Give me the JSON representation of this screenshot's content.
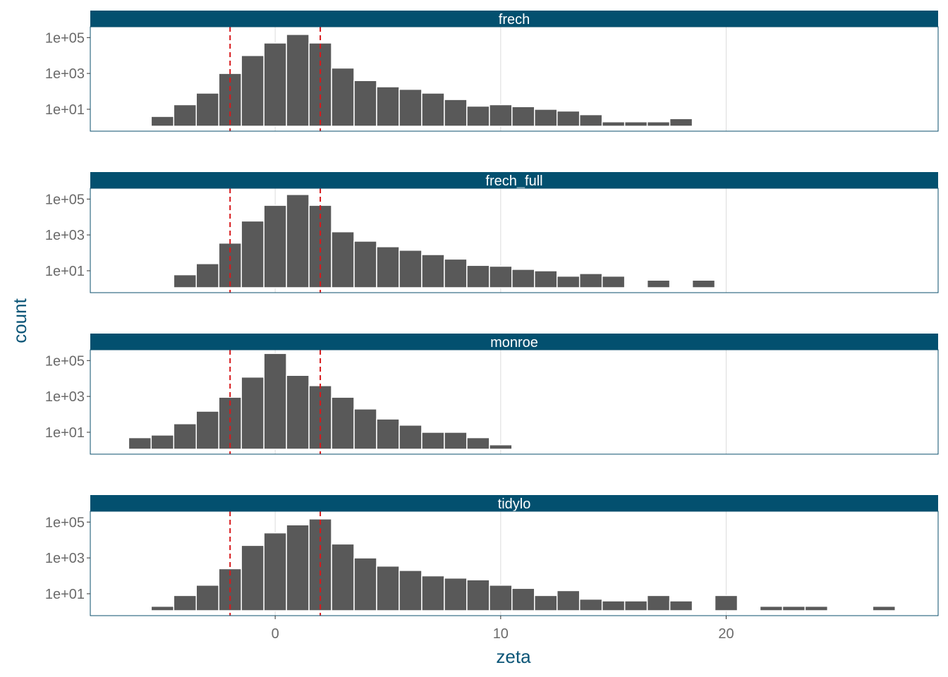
{
  "colors": {
    "strip": "#03506f",
    "panel_border": "#0b4f6c",
    "bar": "#595959",
    "bar_outline": "#ffffff",
    "vline": "#d7191c",
    "grid": "#dcdcdc",
    "tick_text": "#6b6b6b",
    "axis_title": "#0b5577"
  },
  "chart_data": {
    "type": "bar",
    "subtype": "faceted histogram",
    "xlabel": "zeta",
    "ylabel": "count",
    "y_scale": "log10",
    "y_ticks": [
      10,
      1000,
      100000
    ],
    "y_tick_labels": [
      "1e+01",
      "1e+03",
      "1e+05"
    ],
    "x_ticks": [
      0,
      10,
      20
    ],
    "x_tick_labels": [
      "0",
      "10",
      "20"
    ],
    "xlim": [
      -8.2,
      29.4
    ],
    "ylim": [
      0.6,
      400000
    ],
    "bin_width": 1,
    "x_gridlines": [
      0,
      10,
      20
    ],
    "reference_lines": [
      -2,
      2
    ],
    "reference_line_style": "dashed",
    "grid": "vertical major only",
    "legend": "none",
    "facets": [
      {
        "label": "frech",
        "bins": [
          {
            "x": -5,
            "count": 4
          },
          {
            "x": -4,
            "count": 18
          },
          {
            "x": -3,
            "count": 80
          },
          {
            "x": -2,
            "count": 1000
          },
          {
            "x": -1,
            "count": 10000
          },
          {
            "x": 0,
            "count": 50000
          },
          {
            "x": 1,
            "count": 150000
          },
          {
            "x": 2,
            "count": 50000
          },
          {
            "x": 3,
            "count": 2000
          },
          {
            "x": 4,
            "count": 400
          },
          {
            "x": 5,
            "count": 180
          },
          {
            "x": 6,
            "count": 130
          },
          {
            "x": 7,
            "count": 80
          },
          {
            "x": 8,
            "count": 35
          },
          {
            "x": 9,
            "count": 15
          },
          {
            "x": 10,
            "count": 18
          },
          {
            "x": 11,
            "count": 14
          },
          {
            "x": 12,
            "count": 10
          },
          {
            "x": 13,
            "count": 8
          },
          {
            "x": 14,
            "count": 5
          },
          {
            "x": 15,
            "count": 2
          },
          {
            "x": 16,
            "count": 2
          },
          {
            "x": 17,
            "count": 2
          },
          {
            "x": 18,
            "count": 3
          }
        ]
      },
      {
        "label": "frech_full",
        "bins": [
          {
            "x": -4,
            "count": 6
          },
          {
            "x": -3,
            "count": 25
          },
          {
            "x": -2,
            "count": 350
          },
          {
            "x": -1,
            "count": 6000
          },
          {
            "x": 0,
            "count": 45000
          },
          {
            "x": 1,
            "count": 180000
          },
          {
            "x": 2,
            "count": 45000
          },
          {
            "x": 3,
            "count": 1500
          },
          {
            "x": 4,
            "count": 450
          },
          {
            "x": 5,
            "count": 220
          },
          {
            "x": 6,
            "count": 140
          },
          {
            "x": 7,
            "count": 80
          },
          {
            "x": 8,
            "count": 45
          },
          {
            "x": 9,
            "count": 20
          },
          {
            "x": 10,
            "count": 18
          },
          {
            "x": 11,
            "count": 12
          },
          {
            "x": 12,
            "count": 10
          },
          {
            "x": 13,
            "count": 5
          },
          {
            "x": 14,
            "count": 7
          },
          {
            "x": 15,
            "count": 5
          },
          {
            "x": 17,
            "count": 3
          },
          {
            "x": 19,
            "count": 3
          }
        ]
      },
      {
        "label": "monroe",
        "bins": [
          {
            "x": -6,
            "count": 5
          },
          {
            "x": -5,
            "count": 7
          },
          {
            "x": -4,
            "count": 30
          },
          {
            "x": -3,
            "count": 150
          },
          {
            "x": -2,
            "count": 900
          },
          {
            "x": -1,
            "count": 12000
          },
          {
            "x": 0,
            "count": 250000
          },
          {
            "x": 1,
            "count": 15000
          },
          {
            "x": 2,
            "count": 4000
          },
          {
            "x": 3,
            "count": 900
          },
          {
            "x": 4,
            "count": 200
          },
          {
            "x": 5,
            "count": 55
          },
          {
            "x": 6,
            "count": 25
          },
          {
            "x": 7,
            "count": 10
          },
          {
            "x": 8,
            "count": 10
          },
          {
            "x": 9,
            "count": 5
          },
          {
            "x": 10,
            "count": 2
          }
        ]
      },
      {
        "label": "tidylo",
        "bins": [
          {
            "x": -5,
            "count": 2
          },
          {
            "x": -4,
            "count": 8
          },
          {
            "x": -3,
            "count": 30
          },
          {
            "x": -2,
            "count": 250
          },
          {
            "x": -1,
            "count": 5000
          },
          {
            "x": 0,
            "count": 25000
          },
          {
            "x": 1,
            "count": 70000
          },
          {
            "x": 2,
            "count": 150000
          },
          {
            "x": 3,
            "count": 6000
          },
          {
            "x": 4,
            "count": 1000
          },
          {
            "x": 5,
            "count": 350
          },
          {
            "x": 6,
            "count": 200
          },
          {
            "x": 7,
            "count": 100
          },
          {
            "x": 8,
            "count": 75
          },
          {
            "x": 9,
            "count": 60
          },
          {
            "x": 10,
            "count": 30
          },
          {
            "x": 11,
            "count": 20
          },
          {
            "x": 12,
            "count": 8
          },
          {
            "x": 13,
            "count": 15
          },
          {
            "x": 14,
            "count": 5
          },
          {
            "x": 15,
            "count": 4
          },
          {
            "x": 16,
            "count": 4
          },
          {
            "x": 17,
            "count": 8
          },
          {
            "x": 18,
            "count": 4
          },
          {
            "x": 20,
            "count": 8
          },
          {
            "x": 22,
            "count": 2
          },
          {
            "x": 23,
            "count": 2
          },
          {
            "x": 24,
            "count": 2
          },
          {
            "x": 27,
            "count": 2
          }
        ]
      }
    ]
  }
}
